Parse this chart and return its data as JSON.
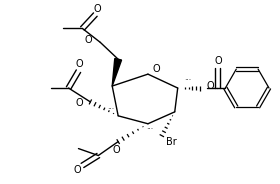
{
  "bg_color": "#ffffff",
  "line_color": "#000000",
  "lw": 1.0,
  "fs": 6.5,
  "figsize": [
    2.8,
    1.84
  ],
  "dpi": 100,
  "xlim": [
    0,
    280
  ],
  "ylim": [
    0,
    184
  ]
}
